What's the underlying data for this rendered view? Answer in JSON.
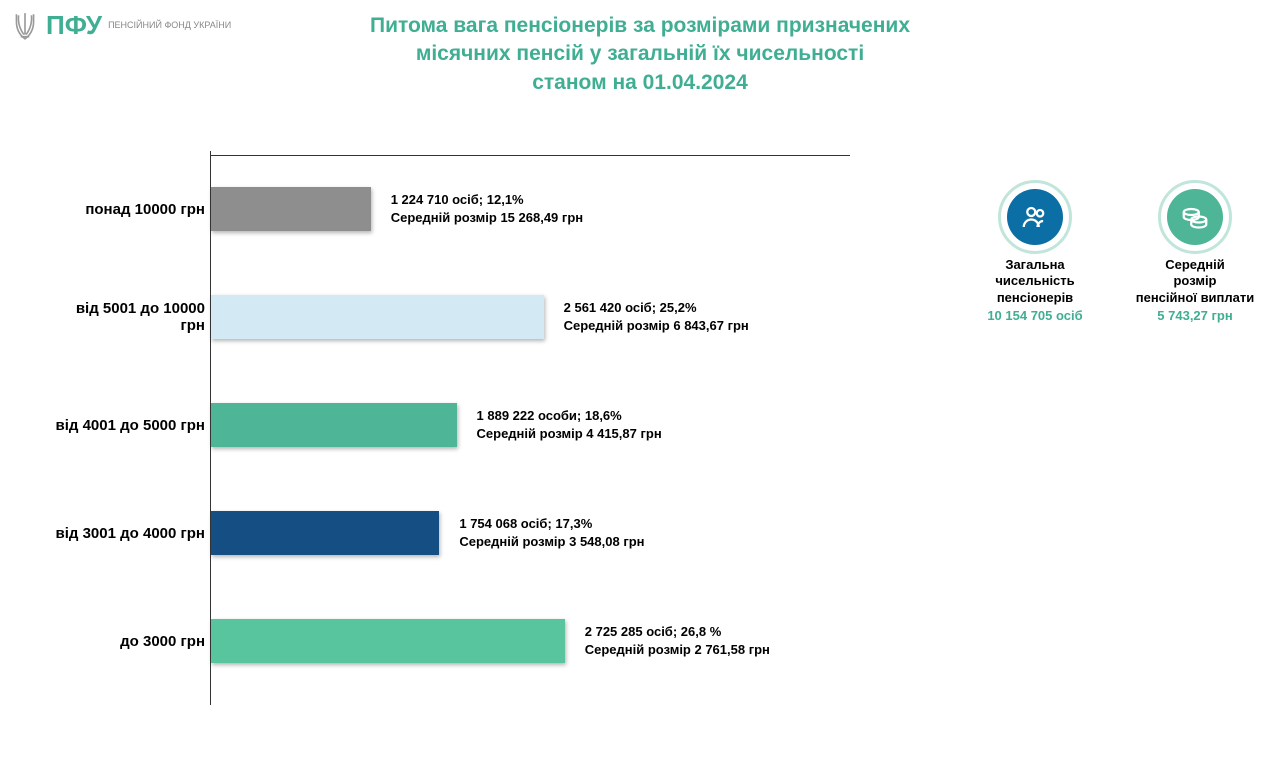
{
  "header": {
    "logo_main": "ПФУ",
    "logo_sub": "ПЕНСІЙНИЙ\nФОНД\nУКРАЇНИ"
  },
  "title": "Питома вага пенсіонерів за розмірами призначених\nмісячних пенсій у загальній їх чисельності\nстаном на 01.04.2024",
  "chart": {
    "type": "bar-horizontal",
    "max_percent": 30,
    "bar_width_scale": 13.2,
    "bars": [
      {
        "category": "понад 10000 грн",
        "percent": 12.1,
        "color": "#8e8e8e",
        "line1": "1 224 710 осіб;  12,1%",
        "line2": "Середній розмір 15 268,49 грн"
      },
      {
        "category": "від 5001 до 10000 грн",
        "percent": 25.2,
        "color": "#d3eaf5",
        "line1": "2 561 420 осіб; 25,2%",
        "line2": "Середній розмір 6 843,67 грн"
      },
      {
        "category": "від 4001 до 5000 грн",
        "percent": 18.6,
        "color": "#4eb597",
        "line1": "1 889 222 особи; 18,6%",
        "line2": "Середній розмір 4 415,87 грн"
      },
      {
        "category": "від 3001 до 4000 грн",
        "percent": 17.3,
        "color": "#154e82",
        "line1": "1 754 068 осіб; 17,3%",
        "line2": "Середній розмір 3 548,08 грн"
      },
      {
        "category": "до 3000 грн",
        "percent": 26.8,
        "color": "#58c59e",
        "line1": "2 725 285 осіб; 26,8 %",
        "line2": "Середній розмір 2 761,58 грн"
      }
    ]
  },
  "stats": [
    {
      "icon": "people",
      "icon_bg": "#0b6ea4",
      "ring_color": "#4eb597",
      "label": "Загальна\nчисельність\nпенсіонерів",
      "value": "10 154 705 осіб",
      "value_color": "#3fae93"
    },
    {
      "icon": "coins",
      "icon_bg": "#4eb597",
      "ring_color": "#4eb597",
      "label": "Середній\nрозмір\nпенсійної виплати",
      "value": "5 743,27 грн",
      "value_color": "#3fae93"
    }
  ]
}
